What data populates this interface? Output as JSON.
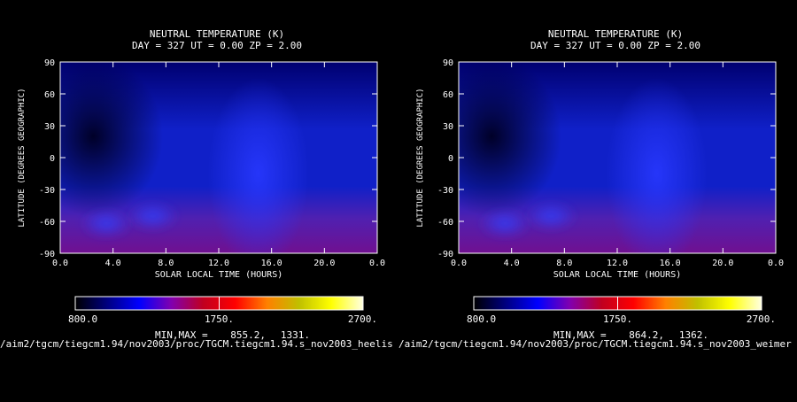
{
  "background_color": "#000000",
  "colormap": [
    "#000000",
    "#000080",
    "#0000ff",
    "#8000b0",
    "#c00020",
    "#ff0000",
    "#ff8000",
    "#c0c000",
    "#ffff00",
    "#ffffe0"
  ],
  "field_colormap": [
    "#000028",
    "#000070",
    "#1020c8",
    "#2838ff",
    "#5020b0",
    "#701090"
  ],
  "chart_data": [
    {
      "type": "heatmap",
      "title": "NEUTRAL TEMPERATURE (K)",
      "subtitle": "DAY = 327   UT =  0.00   ZP =    2.00",
      "xlabel": "SOLAR LOCAL TIME (HOURS)",
      "ylabel": "LATITUDE (DEGREES GEOGRAPHIC)",
      "xticks": [
        "0.0",
        "4.0",
        "8.0",
        "12.0",
        "16.0",
        "20.0",
        "0.0"
      ],
      "yticks": [
        "90",
        "60",
        "30",
        "0",
        "-30",
        "-60",
        "-90"
      ],
      "xlim": [
        0,
        24
      ],
      "ylim": [
        -90,
        90
      ],
      "colorbar": {
        "min_label": "800.0",
        "mid_label": "1750.",
        "max_label": "2700.",
        "range": [
          800,
          2700
        ]
      },
      "minmax_label": "MIN,MAX =",
      "min": "855.2,",
      "max": "1331.",
      "features": {
        "night_min": {
          "x": 2.5,
          "y": 20
        },
        "day_max": {
          "x": 15,
          "y": -15
        },
        "south_lobes": [
          {
            "x": 3.5,
            "y": -62
          },
          {
            "x": 7,
            "y": -55
          }
        ]
      }
    },
    {
      "type": "heatmap",
      "title": "NEUTRAL TEMPERATURE (K)",
      "subtitle": "DAY = 327   UT =  0.00   ZP =    2.00",
      "xlabel": "SOLAR LOCAL TIME (HOURS)",
      "ylabel": "LATITUDE (DEGREES GEOGRAPHIC)",
      "xticks": [
        "0.0",
        "4.0",
        "8.0",
        "12.0",
        "16.0",
        "20.0",
        "0.0"
      ],
      "yticks": [
        "90",
        "60",
        "30",
        "0",
        "-30",
        "-60",
        "-90"
      ],
      "xlim": [
        0,
        24
      ],
      "ylim": [
        -90,
        90
      ],
      "colorbar": {
        "min_label": "800.0",
        "mid_label": "1750.",
        "max_label": "2700.",
        "range": [
          800,
          2700
        ]
      },
      "minmax_label": "MIN,MAX =",
      "min": "864.2,",
      "max": "1362.",
      "features": {
        "night_min": {
          "x": 2.5,
          "y": 20
        },
        "day_max": {
          "x": 15,
          "y": -15
        },
        "south_lobes": [
          {
            "x": 3.5,
            "y": -62
          },
          {
            "x": 7,
            "y": -55
          }
        ]
      }
    }
  ],
  "file_paths": [
    "/aim2/tgcm/tiegcm1.94/nov2003/proc/TGCM.tiegcm1.94.s_nov2003_heelis",
    "/aim2/tgcm/tiegcm1.94/nov2003/proc/TGCM.tiegcm1.94.s_nov2003_weimer"
  ]
}
